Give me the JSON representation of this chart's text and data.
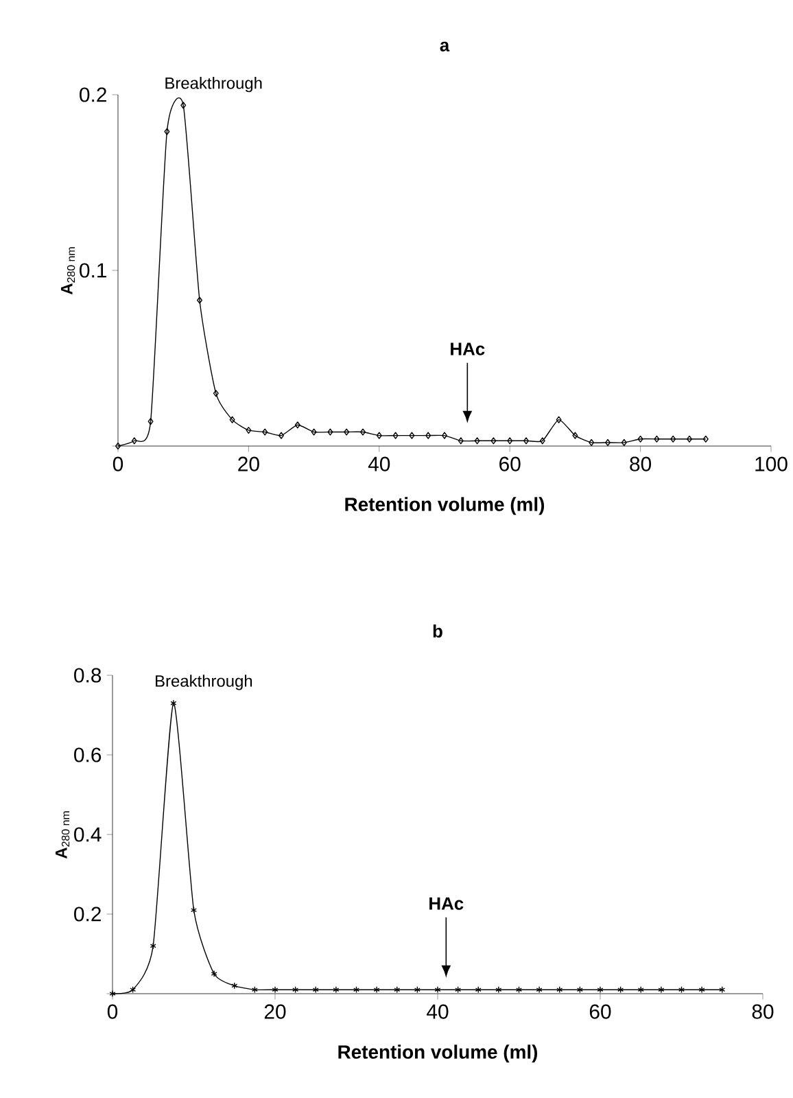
{
  "chart_data": [
    {
      "type": "line",
      "title": "a",
      "xlabel": "Retention volume (ml)",
      "ylabel": "**A**$_{280 nm}$",
      "marker": "diamond",
      "x": [
        0,
        2.5,
        5,
        7.5,
        10,
        12.5,
        15,
        17.5,
        20,
        22.5,
        25,
        27.5,
        30,
        32.5,
        35,
        37.5,
        40,
        42.5,
        45,
        47.5,
        50,
        52.5,
        55,
        57.5,
        60,
        62.5,
        65,
        67.5,
        70,
        72.5,
        75,
        77.5,
        80,
        82.5,
        85,
        87.5,
        90
      ],
      "series": [
        {
          "color": "#000000",
          "values": [
            0,
            0.003,
            0.014,
            0.179,
            0.194,
            0.083,
            0.03,
            0.015,
            0.009,
            0.008,
            0.006,
            0.012,
            0.008,
            0.008,
            0.008,
            0.008,
            0.006,
            0.006,
            0.006,
            0.006,
            0.006,
            0.003,
            0.003,
            0.003,
            0.003,
            0.003,
            0.003,
            0.015,
            0.006,
            0.002,
            0.002,
            0.002,
            0.004,
            0.004,
            0.004,
            0.004,
            0.004
          ]
        }
      ],
      "xlim": [
        0,
        100
      ],
      "xticks": [
        0,
        20,
        40,
        60,
        80,
        100
      ],
      "ylim": [
        0,
        0.2
      ],
      "yticks": [
        {
          "value": 0,
          "label": null
        },
        0.1,
        0.2
      ],
      "annotations": [
        {
          "text": "Breakthrough",
          "x": 10,
          "y": 0.194
        },
        "HAc"
      ]
    },
    {
      "type": "line",
      "title": "b",
      "xlabel": "Retention volume (ml)",
      "ylabel": "**A**$_{280 nm}$",
      "marker": "cross",
      "x": [
        0,
        2.5,
        5,
        7.5,
        10,
        12.5,
        15,
        17.5,
        20,
        22.5,
        25,
        27.5,
        30,
        32.5,
        35,
        37.5,
        40,
        42.5,
        45,
        47.5,
        50,
        52.5,
        55,
        57.5,
        60,
        62.5,
        65,
        67.5,
        70,
        72.5,
        75
      ],
      "series": [
        {
          "color": "#000000",
          "values": [
            0,
            0.01,
            0.12,
            0.73,
            0.21,
            0.05,
            0.02,
            0.01,
            0.01,
            0.01,
            0.01,
            0.01,
            0.01,
            0.01,
            0.01,
            0.01,
            0.01,
            0.01,
            0.01,
            0.01,
            0.01,
            0.01,
            0.01,
            0.01,
            0.01,
            0.01,
            0.01,
            0.01,
            0.01,
            0.01,
            0.01
          ]
        }
      ],
      "xlim": [
        0,
        80
      ],
      "xticks": [
        0,
        20,
        40,
        60,
        80
      ],
      "ylim": [
        0,
        0.8
      ],
      "yticks": [
        {
          "value": 0,
          "label": null
        },
        0.2,
        0.4,
        0.6,
        0.8
      ],
      "annotations": [
        {
          "text": "Breakthrough",
          "x": 7.5,
          "y": 0.73
        },
        "HAc"
      ]
    }
  ]
}
